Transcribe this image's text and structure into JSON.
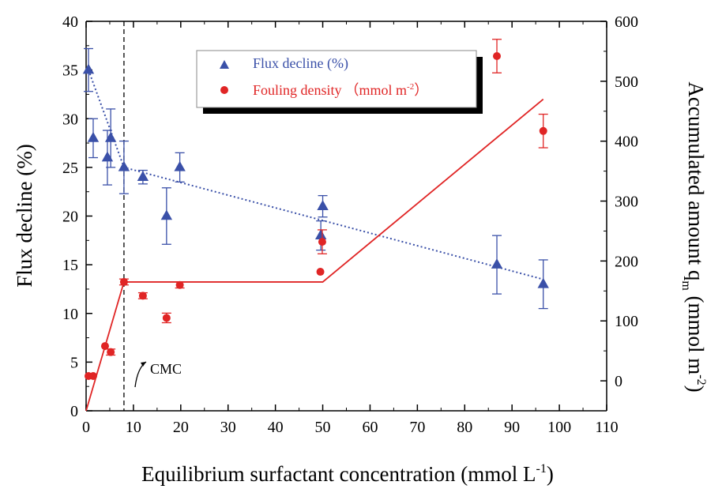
{
  "chart_data": {
    "type": "scatter",
    "xlabel": "Equilibrium surfactant concentration (mmol L",
    "xlabel_sup": "-1",
    "xlabel_end": ")",
    "ylabel": "Flux decline (%)",
    "y2label": "Accumulated amount q",
    "y2label_sub": "m",
    "y2label_units": " (mmol m",
    "y2label_sup": "-2",
    "y2label_end": ")",
    "xlim": [
      0,
      110
    ],
    "ylim": [
      0,
      40
    ],
    "y2lim": [
      -50,
      600
    ],
    "x_ticks": [
      "0",
      "10",
      "20",
      "30",
      "40",
      "50",
      "60",
      "70",
      "80",
      "90",
      "100",
      "110"
    ],
    "y_ticks": [
      "0",
      "5",
      "10",
      "15",
      "20",
      "25",
      "30",
      "35",
      "40"
    ],
    "y2_ticks": [
      "0",
      "100",
      "200",
      "300",
      "400",
      "500",
      "600"
    ],
    "legend_position": "top-center",
    "series": [
      {
        "name": "Flux decline (%)",
        "axis": "left",
        "marker": "triangle",
        "color": "#3a50a8",
        "points": [
          {
            "x": 0.5,
            "y": 35,
            "err": 2.2
          },
          {
            "x": 1.5,
            "y": 28,
            "err": 2.0
          },
          {
            "x": 4.5,
            "y": 26,
            "err": 2.8
          },
          {
            "x": 5.2,
            "y": 28,
            "err": 3.0
          },
          {
            "x": 8.0,
            "y": 25,
            "err": 2.7
          },
          {
            "x": 12.0,
            "y": 24,
            "err": 0.7
          },
          {
            "x": 17.0,
            "y": 20,
            "err": 2.9
          },
          {
            "x": 19.8,
            "y": 25,
            "err": 1.5
          },
          {
            "x": 49.6,
            "y": 18,
            "err": 1.5
          },
          {
            "x": 50.0,
            "y": 21,
            "err": 1.1
          },
          {
            "x": 86.8,
            "y": 15,
            "err": 3.0
          },
          {
            "x": 96.6,
            "y": 13,
            "err": 2.5
          }
        ],
        "trend_line": {
          "style": "dotted",
          "points": [
            [
              0.5,
              35
            ],
            [
              8,
              25
            ],
            [
              96.6,
              13.5
            ]
          ]
        }
      },
      {
        "name": "Fouling density",
        "name_units": "（mmol m",
        "name_sup": "-2",
        "name_end": "）",
        "axis": "right",
        "marker": "circle",
        "color": "#e02525",
        "points": [
          {
            "x": 0.5,
            "y": 8,
            "err": 0
          },
          {
            "x": 1.5,
            "y": 8,
            "err": 0
          },
          {
            "x": 4.0,
            "y": 58,
            "err": 0
          },
          {
            "x": 5.2,
            "y": 48,
            "err": 5
          },
          {
            "x": 8.0,
            "y": 165,
            "err": 5
          },
          {
            "x": 12.0,
            "y": 142,
            "err": 5
          },
          {
            "x": 17.0,
            "y": 105,
            "err": 8
          },
          {
            "x": 19.8,
            "y": 160,
            "err": 5
          },
          {
            "x": 49.5,
            "y": 182,
            "err": 0
          },
          {
            "x": 49.9,
            "y": 232,
            "err": 20
          },
          {
            "x": 86.8,
            "y": 542,
            "err": 28
          },
          {
            "x": 96.6,
            "y": 417,
            "err": 28
          }
        ],
        "trend_line": {
          "style": "solid",
          "points": [
            [
              0,
              -50
            ],
            [
              8,
              165
            ],
            [
              50,
              165
            ],
            [
              96.6,
              470
            ]
          ]
        }
      }
    ],
    "reference_line": {
      "x": 8,
      "style": "dashed",
      "label": "CMC"
    }
  }
}
